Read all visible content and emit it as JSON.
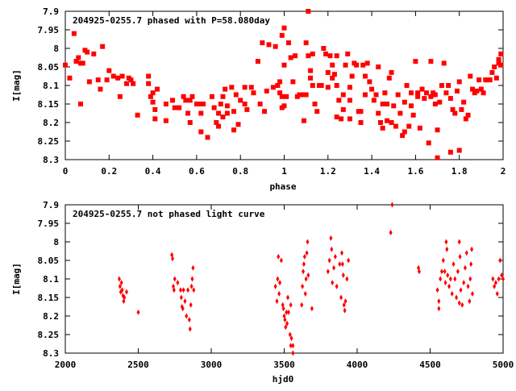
{
  "chart_data": [
    {
      "type": "scatter",
      "title": "204925-0255.7 phased with P=58.080day",
      "xlabel": "phase",
      "ylabel": "I[mag]",
      "xlim": [
        0,
        2
      ],
      "ylim": [
        8.3,
        7.9
      ],
      "y_inverted": true,
      "grid": false,
      "marker_color": "#ff0000",
      "x_ticks": [
        0,
        0.2,
        0.4,
        0.6,
        0.8,
        1,
        1.2,
        1.4,
        1.6,
        1.8,
        2
      ],
      "x_tick_labels": [
        "0",
        "0.2",
        "0.4",
        "0.6",
        "0.8",
        "1",
        "1.2",
        "1.4",
        "1.6",
        "1.8",
        "2"
      ],
      "y_ticks": [
        7.9,
        7.95,
        8,
        8.05,
        8.1,
        8.15,
        8.2,
        8.25,
        8.3
      ],
      "y_tick_labels": [
        "7.9",
        "7.95",
        "8",
        "8.05",
        "8.1",
        "8.15",
        "8.2",
        "8.25",
        "8.3"
      ],
      "points": [
        [
          0.0,
          8.045
        ],
        [
          0.02,
          8.08
        ],
        [
          0.04,
          7.96
        ],
        [
          0.05,
          8.035
        ],
        [
          0.06,
          8.025
        ],
        [
          0.07,
          8.15
        ],
        [
          0.07,
          8.04
        ],
        [
          0.08,
          8.04
        ],
        [
          0.09,
          8.005
        ],
        [
          0.1,
          8.01
        ],
        [
          0.11,
          8.09
        ],
        [
          0.13,
          8.015
        ],
        [
          0.15,
          8.085
        ],
        [
          0.16,
          8.11
        ],
        [
          0.17,
          7.995
        ],
        [
          0.19,
          8.085
        ],
        [
          0.2,
          8.06
        ],
        [
          0.22,
          8.075
        ],
        [
          0.24,
          8.08
        ],
        [
          0.25,
          8.13
        ],
        [
          0.26,
          8.075
        ],
        [
          0.28,
          8.095
        ],
        [
          0.29,
          8.08
        ],
        [
          0.3,
          8.085
        ],
        [
          0.31,
          8.095
        ],
        [
          0.33,
          8.18
        ],
        [
          0.38,
          8.075
        ],
        [
          0.38,
          8.095
        ],
        [
          0.39,
          8.13
        ],
        [
          0.4,
          8.12
        ],
        [
          0.4,
          8.145
        ],
        [
          0.41,
          8.165
        ],
        [
          0.41,
          8.19
        ],
        [
          0.42,
          8.11
        ],
        [
          0.46,
          8.15
        ],
        [
          0.46,
          8.195
        ],
        [
          0.49,
          8.14
        ],
        [
          0.5,
          8.16
        ],
        [
          0.52,
          8.16
        ],
        [
          0.54,
          8.13
        ],
        [
          0.55,
          8.14
        ],
        [
          0.56,
          8.175
        ],
        [
          0.57,
          8.2
        ],
        [
          0.57,
          8.14
        ],
        [
          0.58,
          8.13
        ],
        [
          0.6,
          8.15
        ],
        [
          0.62,
          8.15
        ],
        [
          0.62,
          8.175
        ],
        [
          0.63,
          8.15
        ],
        [
          0.62,
          8.225
        ],
        [
          0.65,
          8.24
        ],
        [
          0.67,
          8.13
        ],
        [
          0.68,
          8.16
        ],
        [
          0.69,
          8.2
        ],
        [
          0.7,
          8.175
        ],
        [
          0.7,
          8.21
        ],
        [
          0.71,
          8.15
        ],
        [
          0.72,
          8.13
        ],
        [
          0.72,
          8.185
        ],
        [
          0.73,
          8.11
        ],
        [
          0.74,
          8.155
        ],
        [
          0.74,
          8.175
        ],
        [
          0.76,
          8.105
        ],
        [
          0.77,
          8.22
        ],
        [
          0.77,
          8.17
        ],
        [
          0.78,
          8.125
        ],
        [
          0.79,
          8.205
        ],
        [
          0.8,
          8.14
        ],
        [
          0.82,
          8.105
        ],
        [
          0.82,
          8.15
        ],
        [
          0.83,
          8.165
        ],
        [
          0.85,
          8.105
        ],
        [
          0.86,
          8.12
        ],
        [
          0.88,
          8.035
        ],
        [
          0.89,
          8.15
        ],
        [
          0.9,
          7.985
        ],
        [
          0.91,
          8.17
        ],
        [
          0.92,
          8.115
        ],
        [
          0.93,
          7.99
        ],
        [
          0.95,
          8.105
        ],
        [
          0.96,
          7.995
        ],
        [
          0.97,
          8.1
        ],
        [
          0.98,
          8.09
        ],
        [
          0.98,
          8.12
        ],
        [
          0.99,
          8.13
        ],
        [
          0.99,
          8.16
        ],
        [
          1.0,
          8.045
        ],
        [
          0.99,
          7.965
        ],
        [
          1.0,
          7.945
        ],
        [
          1.01,
          8.13
        ],
        [
          1.02,
          7.985
        ],
        [
          1.03,
          8.025
        ],
        [
          1.04,
          8.09
        ],
        [
          1.05,
          8.02
        ],
        [
          1.06,
          8.13
        ],
        [
          1.07,
          8.125
        ],
        [
          1.08,
          8.125
        ],
        [
          1.09,
          8.195
        ],
        [
          1.1,
          8.125
        ],
        [
          1.1,
          7.985
        ],
        [
          1.11,
          8.02
        ],
        [
          1.12,
          8.06
        ],
        [
          1.11,
          7.9
        ],
        [
          1.12,
          8.08
        ],
        [
          1.13,
          8.015
        ],
        [
          1.13,
          8.1
        ],
        [
          1.14,
          8.15
        ],
        [
          1.15,
          8.17
        ],
        [
          1.16,
          8.1
        ],
        [
          1.17,
          8.1
        ],
        [
          1.18,
          8.0
        ],
        [
          1.19,
          8.015
        ],
        [
          1.2,
          8.065
        ],
        [
          1.2,
          8.105
        ],
        [
          1.21,
          8.02
        ],
        [
          1.22,
          8.045
        ],
        [
          1.22,
          8.08
        ],
        [
          1.23,
          8.07
        ],
        [
          1.24,
          8.1
        ],
        [
          1.24,
          8.02
        ],
        [
          1.25,
          8.14
        ],
        [
          1.26,
          8.19
        ],
        [
          1.27,
          8.125
        ],
        [
          1.27,
          8.165
        ],
        [
          1.28,
          8.045
        ],
        [
          1.29,
          8.015
        ],
        [
          1.3,
          8.105
        ],
        [
          1.3,
          8.14
        ],
        [
          1.31,
          8.075
        ],
        [
          1.32,
          8.04
        ],
        [
          1.33,
          8.045
        ],
        [
          1.34,
          8.17
        ],
        [
          1.35,
          8.2
        ],
        [
          1.35,
          8.17
        ],
        [
          1.36,
          8.045
        ],
        [
          1.37,
          8.075
        ],
        [
          1.37,
          8.125
        ],
        [
          1.38,
          8.04
        ],
        [
          1.39,
          8.09
        ],
        [
          1.4,
          8.11
        ],
        [
          1.41,
          8.14
        ],
        [
          1.42,
          8.125
        ],
        [
          1.43,
          8.05
        ],
        [
          1.43,
          8.175
        ],
        [
          1.44,
          8.2
        ],
        [
          1.45,
          8.15
        ],
        [
          1.46,
          8.12
        ],
        [
          1.47,
          8.195
        ],
        [
          1.47,
          8.15
        ],
        [
          1.48,
          8.08
        ],
        [
          1.49,
          8.065
        ],
        [
          1.49,
          8.2
        ],
        [
          1.5,
          8.155
        ],
        [
          1.51,
          8.21
        ],
        [
          1.52,
          8.125
        ],
        [
          1.53,
          8.175
        ],
        [
          1.54,
          8.235
        ],
        [
          1.55,
          8.145
        ],
        [
          1.56,
          8.1
        ],
        [
          1.57,
          8.21
        ],
        [
          1.58,
          8.12
        ],
        [
          1.58,
          8.155
        ],
        [
          1.59,
          8.18
        ],
        [
          1.6,
          8.035
        ],
        [
          1.61,
          8.13
        ],
        [
          1.61,
          8.12
        ],
        [
          1.62,
          8.215
        ],
        [
          1.63,
          8.11
        ],
        [
          1.64,
          8.135
        ],
        [
          1.65,
          8.12
        ],
        [
          1.66,
          8.255
        ],
        [
          1.67,
          8.13
        ],
        [
          1.67,
          8.035
        ],
        [
          1.68,
          8.12
        ],
        [
          1.69,
          8.125
        ],
        [
          1.69,
          8.15
        ],
        [
          1.7,
          8.22
        ],
        [
          1.71,
          8.145
        ],
        [
          1.72,
          8.1
        ],
        [
          1.73,
          8.04
        ],
        [
          1.74,
          8.12
        ],
        [
          1.75,
          8.1
        ],
        [
          1.76,
          8.135
        ],
        [
          1.77,
          8.165
        ],
        [
          1.78,
          8.175
        ],
        [
          1.79,
          8.115
        ],
        [
          1.8,
          8.09
        ],
        [
          1.81,
          8.165
        ],
        [
          1.82,
          8.145
        ],
        [
          1.83,
          8.19
        ],
        [
          1.84,
          8.18
        ],
        [
          1.85,
          8.075
        ],
        [
          1.86,
          8.11
        ],
        [
          1.87,
          8.12
        ],
        [
          1.88,
          8.115
        ],
        [
          1.89,
          8.085
        ],
        [
          1.9,
          8.11
        ],
        [
          1.91,
          8.12
        ],
        [
          1.92,
          8.085
        ],
        [
          1.93,
          8.085
        ],
        [
          1.94,
          8.085
        ],
        [
          1.95,
          8.065
        ],
        [
          1.96,
          8.05
        ],
        [
          1.97,
          8.08
        ],
        [
          1.98,
          8.04
        ],
        [
          1.99,
          8.045
        ],
        [
          1.98,
          8.03
        ],
        [
          1.99,
          8.015
        ],
        [
          1.7,
          8.295
        ],
        [
          1.76,
          8.28
        ],
        [
          1.8,
          8.275
        ],
        [
          1.55,
          8.225
        ],
        [
          1.45,
          8.215
        ],
        [
          1.3,
          8.19
        ],
        [
          1.24,
          8.185
        ],
        [
          1.0,
          8.155
        ]
      ]
    },
    {
      "type": "scatter",
      "title": "204925-0255.7 not phased light curve",
      "xlabel": "hjd0",
      "ylabel": "I[mag]",
      "xlim": [
        2000,
        5000
      ],
      "ylim": [
        8.3,
        7.9
      ],
      "y_inverted": true,
      "grid": false,
      "marker_color": "#ff0000",
      "x_ticks": [
        2000,
        2500,
        3000,
        3500,
        4000,
        4500,
        5000
      ],
      "x_tick_labels": [
        "2000",
        "2500",
        "3000",
        "3500",
        "4000",
        "4500",
        "5000"
      ],
      "y_ticks": [
        7.9,
        7.95,
        8,
        8.05,
        8.1,
        8.15,
        8.2,
        8.25,
        8.3
      ],
      "y_tick_labels": [
        "7.9",
        "7.95",
        "8",
        "8.05",
        "8.1",
        "8.15",
        "8.2",
        "8.25",
        "8.3"
      ],
      "points": [
        [
          2370,
          8.1
        ],
        [
          2375,
          8.12
        ],
        [
          2380,
          8.135
        ],
        [
          2385,
          8.11
        ],
        [
          2390,
          8.13
        ],
        [
          2395,
          8.145
        ],
        [
          2400,
          8.16
        ],
        [
          2405,
          8.15
        ],
        [
          2420,
          8.135
        ],
        [
          2500,
          8.19
        ],
        [
          2730,
          8.035
        ],
        [
          2735,
          8.045
        ],
        [
          2740,
          8.12
        ],
        [
          2745,
          8.13
        ],
        [
          2750,
          8.1
        ],
        [
          2770,
          8.11
        ],
        [
          2790,
          8.13
        ],
        [
          2795,
          8.15
        ],
        [
          2800,
          8.175
        ],
        [
          2805,
          8.18
        ],
        [
          2810,
          8.13
        ],
        [
          2820,
          8.16
        ],
        [
          2830,
          8.2
        ],
        [
          2840,
          8.13
        ],
        [
          2850,
          8.21
        ],
        [
          2855,
          8.235
        ],
        [
          2860,
          8.17
        ],
        [
          2865,
          8.12
        ],
        [
          2870,
          8.1
        ],
        [
          2875,
          8.07
        ],
        [
          2880,
          8.13
        ],
        [
          3440,
          8.12
        ],
        [
          3450,
          8.16
        ],
        [
          3455,
          8.1
        ],
        [
          3460,
          8.04
        ],
        [
          3465,
          8.14
        ],
        [
          3470,
          8.11
        ],
        [
          3480,
          8.05
        ],
        [
          3490,
          8.17
        ],
        [
          3495,
          8.18
        ],
        [
          3500,
          8.2
        ],
        [
          3505,
          8.21
        ],
        [
          3510,
          8.23
        ],
        [
          3515,
          8.19
        ],
        [
          3520,
          8.22
        ],
        [
          3525,
          8.15
        ],
        [
          3530,
          8.19
        ],
        [
          3540,
          8.25
        ],
        [
          3545,
          8.17
        ],
        [
          3550,
          8.26
        ],
        [
          3560,
          8.3
        ],
        [
          3560,
          8.28
        ],
        [
          3620,
          8.17
        ],
        [
          3625,
          8.12
        ],
        [
          3630,
          8.08
        ],
        [
          3635,
          8.06
        ],
        [
          3640,
          8.04
        ],
        [
          3645,
          8.14
        ],
        [
          3650,
          8.1
        ],
        [
          3655,
          8.03
        ],
        [
          3660,
          8.0
        ],
        [
          3665,
          8.09
        ],
        [
          3690,
          8.18
        ],
        [
          3800,
          8.08
        ],
        [
          3810,
          8.05
        ],
        [
          3820,
          7.99
        ],
        [
          3825,
          8.02
        ],
        [
          3830,
          8.11
        ],
        [
          3840,
          8.07
        ],
        [
          3850,
          8.04
        ],
        [
          3860,
          8.12
        ],
        [
          3880,
          8.06
        ],
        [
          3890,
          8.15
        ],
        [
          3895,
          8.03
        ],
        [
          3900,
          8.06
        ],
        [
          3905,
          8.09
        ],
        [
          3910,
          8.17
        ],
        [
          3915,
          8.185
        ],
        [
          3920,
          8.16
        ],
        [
          3930,
          8.1
        ],
        [
          3940,
          8.05
        ],
        [
          4230,
          7.975
        ],
        [
          4240,
          7.9
        ],
        [
          4420,
          8.07
        ],
        [
          4425,
          8.08
        ],
        [
          4550,
          8.13
        ],
        [
          4560,
          8.16
        ],
        [
          4570,
          8.1
        ],
        [
          4580,
          8.08
        ],
        [
          4590,
          8.05
        ],
        [
          4600,
          8.08
        ],
        [
          4605,
          8.11
        ],
        [
          4610,
          8.0
        ],
        [
          4615,
          8.02
        ],
        [
          4620,
          8.09
        ],
        [
          4630,
          8.12
        ],
        [
          4640,
          8.1
        ],
        [
          4650,
          8.14
        ],
        [
          4660,
          8.06
        ],
        [
          4670,
          8.1
        ],
        [
          4680,
          8.15
        ],
        [
          4690,
          8.08
        ],
        [
          4700,
          8.0
        ],
        [
          4705,
          8.04
        ],
        [
          4710,
          8.13
        ],
        [
          4720,
          8.17
        ],
        [
          4730,
          8.11
        ],
        [
          4740,
          8.07
        ],
        [
          4750,
          8.03
        ],
        [
          4760,
          8.12
        ],
        [
          4770,
          8.16
        ],
        [
          4775,
          8.1
        ],
        [
          4780,
          8.06
        ],
        [
          4785,
          8.02
        ],
        [
          4790,
          8.14
        ],
        [
          4930,
          8.1
        ],
        [
          4940,
          8.12
        ],
        [
          4950,
          8.11
        ],
        [
          4960,
          8.14
        ],
        [
          4970,
          8.1
        ],
        [
          4980,
          8.05
        ],
        [
          4990,
          8.09
        ],
        [
          5000,
          8.1
        ],
        [
          4560,
          8.18
        ],
        [
          4700,
          8.165
        ],
        [
          3545,
          8.28
        ]
      ]
    }
  ]
}
